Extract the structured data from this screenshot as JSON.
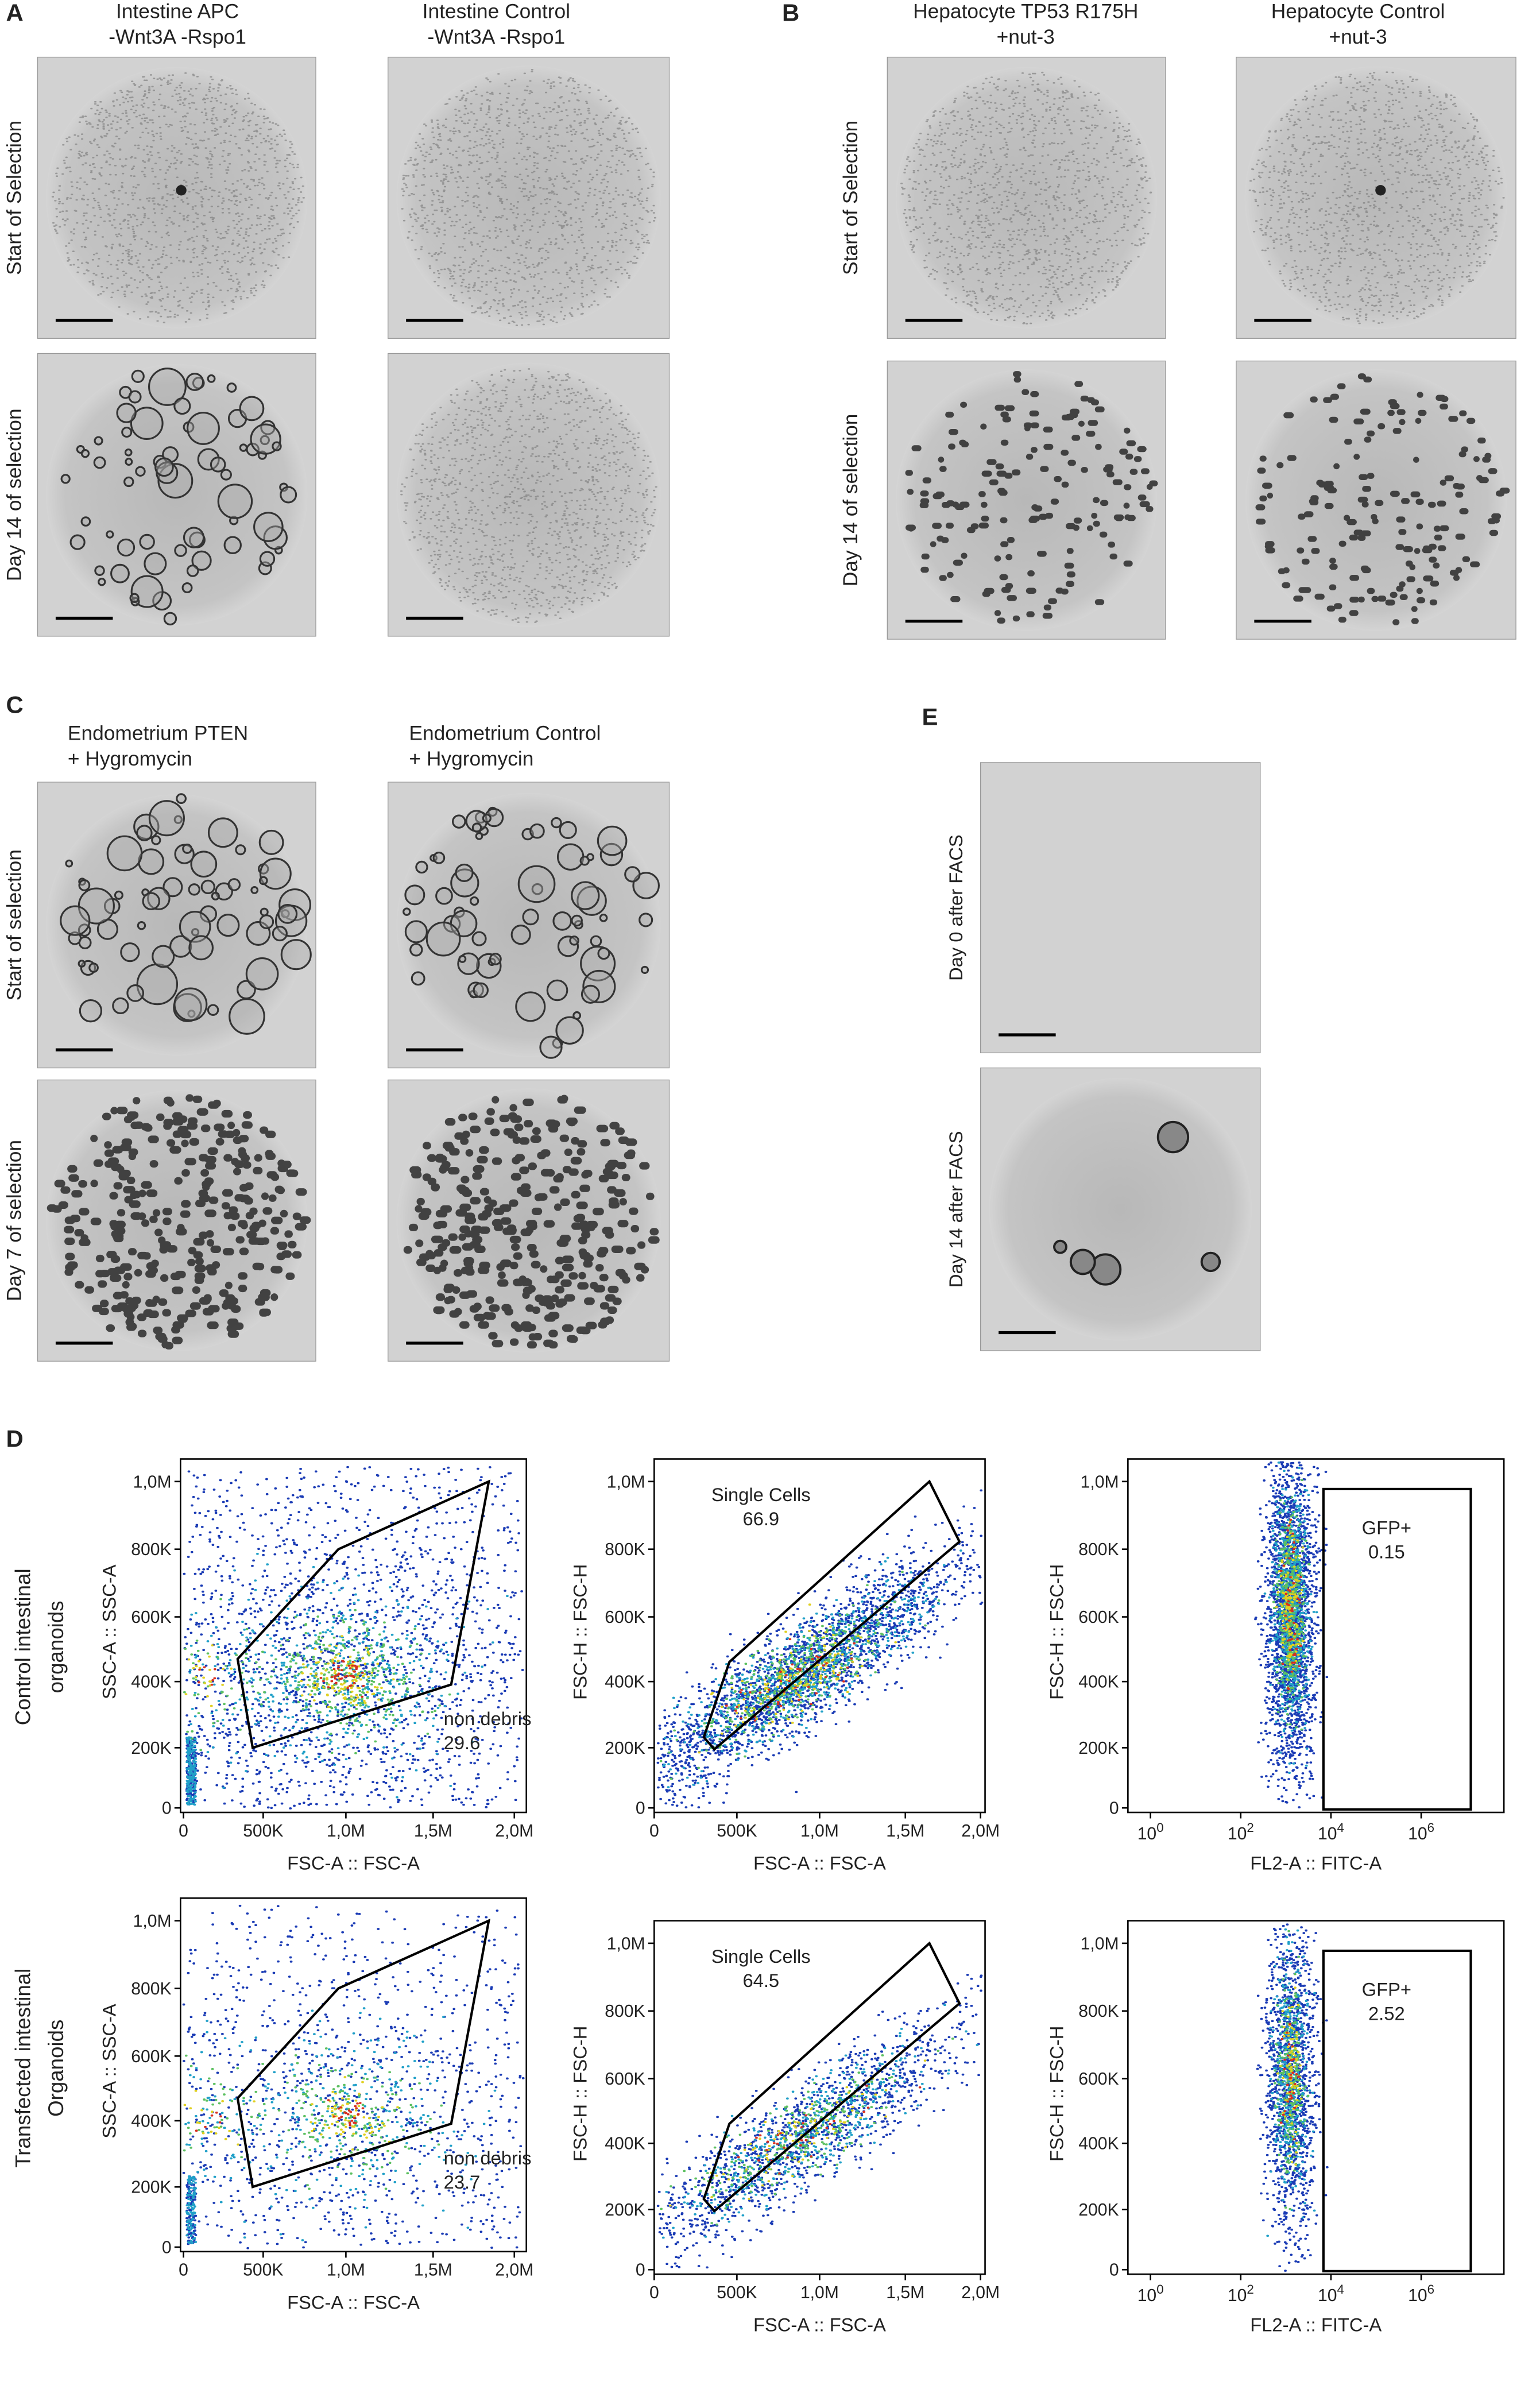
{
  "panels": {
    "A": {
      "letter": "A",
      "columns": [
        [
          "Intestine APC",
          "-Wnt3A -Rspo1"
        ],
        [
          "Intestine Control",
          "-Wnt3A -Rspo1"
        ]
      ],
      "rows": [
        "Start of Selection",
        "Day 14 of selection"
      ]
    },
    "B": {
      "letter": "B",
      "columns": [
        [
          "Hepatocyte TP53 R175H",
          "+nut-3"
        ],
        [
          "Hepatocyte Control",
          "+nut-3"
        ]
      ],
      "rows": [
        "Start of Selection",
        "Day 14 of selection"
      ]
    },
    "C": {
      "letter": "C",
      "columns": [
        [
          "Endometrium PTEN",
          "+    Hygromycin"
        ],
        [
          "Endometrium Control",
          "+    Hygromycin"
        ]
      ],
      "rows": [
        "Start of selection",
        "Day 7 of  selection"
      ]
    },
    "E": {
      "letter": "E",
      "rows": [
        "Day 0 after FACS",
        "Day 14 after FACS"
      ]
    },
    "D": {
      "letter": "D",
      "rows": [
        [
          "Control intestinal",
          "organoids"
        ],
        [
          "Transfected intestinal",
          "Organoids"
        ]
      ],
      "plots": [
        [
          {
            "y_label": "SSC-A :: SSC-A",
            "x_label": "FSC-A :: FSC-A",
            "y_ticks": [
              "1,0M",
              "800K",
              "600K",
              "400K",
              "200K",
              "0"
            ],
            "x_ticks": [
              "0",
              "500K",
              "1,0M",
              "1,5M",
              "2,0M"
            ],
            "gate_label": [
              "non debris",
              "29.6"
            ]
          },
          {
            "y_label": "FSC-H :: FSC-H",
            "x_label": "FSC-A :: FSC-A",
            "y_ticks": [
              "1,0M",
              "800K",
              "600K",
              "400K",
              "200K",
              "0"
            ],
            "x_ticks": [
              "0",
              "500K",
              "1,0M",
              "1,5M",
              "2,0M"
            ],
            "gate_label": [
              "Single Cells",
              "66.9"
            ]
          },
          {
            "y_label": "FSC-H :: FSC-H",
            "x_label": "FL2-A :: FITC-A",
            "y_ticks": [
              "1,0M",
              "800K",
              "600K",
              "400K",
              "200K",
              "0"
            ],
            "x_ticks": [
              {
                "base": "10",
                "exp": "0"
              },
              {
                "base": "10",
                "exp": "2"
              },
              {
                "base": "10",
                "exp": "4"
              },
              {
                "base": "10",
                "exp": "6"
              }
            ],
            "gate_label": [
              "GFP+",
              "0.15"
            ]
          }
        ],
        [
          {
            "y_label": "SSC-A :: SSC-A",
            "x_label": "FSC-A :: FSC-A",
            "y_ticks": [
              "1,0M",
              "800K",
              "600K",
              "400K",
              "200K",
              "0"
            ],
            "x_ticks": [
              "0",
              "500K",
              "1,0M",
              "1,5M",
              "2,0M"
            ],
            "gate_label": [
              "non debris",
              "23.7"
            ]
          },
          {
            "y_label": "FSC-H :: FSC-H",
            "x_label": "FSC-A :: FSC-A",
            "y_ticks": [
              "1,0M",
              "800K",
              "600K",
              "400K",
              "200K",
              "0"
            ],
            "x_ticks": [
              "0",
              "500K",
              "1,0M",
              "1,5M",
              "2,0M"
            ],
            "gate_label": [
              "Single Cells",
              "64.5"
            ]
          },
          {
            "y_label": "FSC-H :: FSC-H",
            "x_label": "FL2-A :: FITC-A",
            "y_ticks": [
              "1,0M",
              "800K",
              "600K",
              "400K",
              "200K",
              "0"
            ],
            "x_ticks": [
              {
                "base": "10",
                "exp": "0"
              },
              {
                "base": "10",
                "exp": "2"
              },
              {
                "base": "10",
                "exp": "4"
              },
              {
                "base": "10",
                "exp": "6"
              }
            ],
            "gate_label": [
              "GFP+",
              "2.52"
            ]
          }
        ]
      ]
    }
  }
}
